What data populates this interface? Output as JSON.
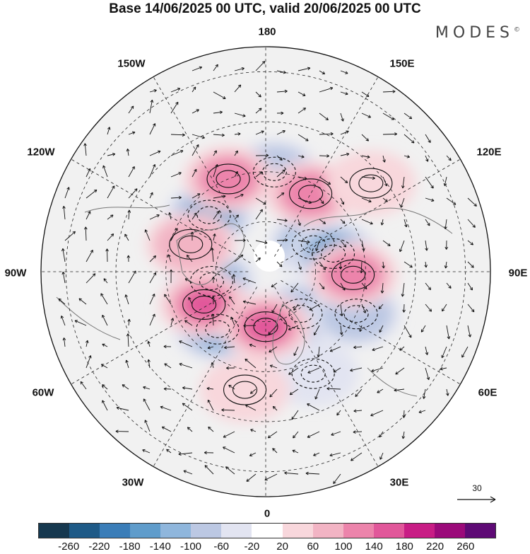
{
  "title": "Base 14/06/2025 00 UTC, valid 20/06/2025 00 UTC",
  "brand": "MODES",
  "brand_mark": "©",
  "longitude_labels": {
    "top": "180",
    "bottom": "0",
    "left": "90W",
    "right": "90E",
    "upper_left": "150W",
    "upper_right": "150E",
    "mid_upper_left": "120W",
    "mid_upper_right": "120E",
    "mid_lower_left": "60W",
    "mid_lower_right": "60E",
    "lower_left": "30W",
    "lower_right": "30E"
  },
  "vector_reference": {
    "label": "30"
  },
  "colorbar": {
    "colors": [
      "#16384f",
      "#1e5a87",
      "#3a7db8",
      "#5f9ccb",
      "#8fb6dc",
      "#bcc8e3",
      "#e2e4f1",
      "#ffffff",
      "#f8d7dc",
      "#f2b4c4",
      "#ec84ab",
      "#e1579a",
      "#c81d85",
      "#9b0a7a",
      "#5e0a75"
    ],
    "labels": [
      "-260",
      "-220",
      "-180",
      "-140",
      "-100",
      "-60",
      "-20",
      "20",
      "60",
      "100",
      "140",
      "180",
      "220",
      "260"
    ]
  },
  "anomaly_centers": [
    {
      "sign": "negative",
      "level": 4,
      "lon": -135,
      "colat": 32
    },
    {
      "sign": "negative",
      "level": 2,
      "lon": 175,
      "colat": 40
    },
    {
      "sign": "negative",
      "level": 3,
      "lon": 120,
      "colat": 22
    },
    {
      "sign": "negative",
      "level": 5,
      "lon": 105,
      "colat": 28
    },
    {
      "sign": "negative",
      "level": 3,
      "lon": -80,
      "colat": 22
    },
    {
      "sign": "negative",
      "level": 3,
      "lon": -40,
      "colat": 30
    },
    {
      "sign": "negative",
      "level": 2,
      "lon": 40,
      "colat": 22
    },
    {
      "sign": "negative",
      "level": 2,
      "lon": 65,
      "colat": 40
    },
    {
      "sign": "negative",
      "level": 1,
      "lon": 25,
      "colat": 45
    },
    {
      "sign": "positive",
      "level": 3,
      "lon": -158,
      "colat": 40
    },
    {
      "sign": "positive",
      "level": 3,
      "lon": 150,
      "colat": 36
    },
    {
      "sign": "positive",
      "level": 2,
      "lon": -110,
      "colat": 32
    },
    {
      "sign": "positive",
      "level": 3,
      "lon": 88,
      "colat": 35
    },
    {
      "sign": "positive",
      "level": 4,
      "lon": -62,
      "colat": 28
    },
    {
      "sign": "positive",
      "level": 4,
      "lon": 0,
      "colat": 22
    },
    {
      "sign": "positive",
      "level": 1,
      "lon": 130,
      "colat": 55
    },
    {
      "sign": "positive",
      "level": 1,
      "lon": -10,
      "colat": 48
    }
  ]
}
